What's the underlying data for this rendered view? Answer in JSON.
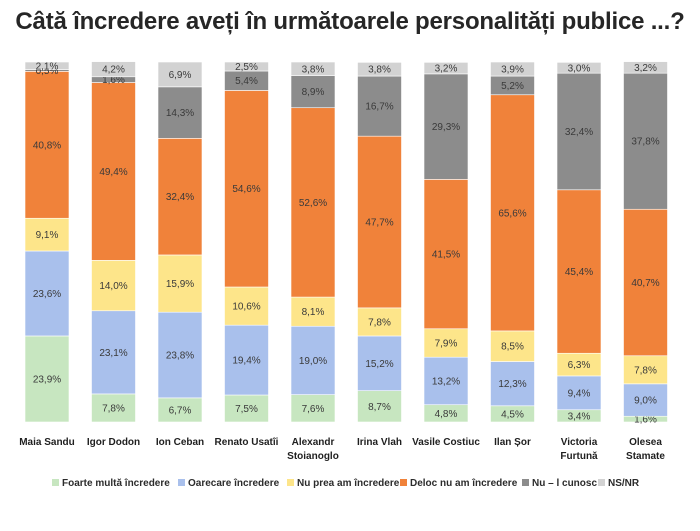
{
  "chart_data": {
    "type": "bar",
    "stacked": true,
    "title": "Câtă încredere aveți în următoarele personalități publice ...?",
    "categories": [
      [
        "Maia Sandu"
      ],
      [
        "Igor Dodon"
      ],
      [
        "Ion Ceban"
      ],
      [
        "Renato Usatîi"
      ],
      [
        "Alexandr",
        "Stoianoglo"
      ],
      [
        "Irina Vlah"
      ],
      [
        "Vasile Costiuc"
      ],
      [
        "Ilan Șor"
      ],
      [
        "Victoria",
        "Furtună"
      ],
      [
        "Olesea",
        "Stamate"
      ]
    ],
    "series": [
      {
        "name": "Foarte multă încredere",
        "color": "#c7e6c0",
        "values": [
          23.9,
          7.8,
          6.7,
          7.5,
          7.6,
          8.7,
          4.8,
          4.5,
          3.4,
          1.6
        ],
        "labels": [
          "23,9%",
          "7,8%",
          "6,7%",
          "7,5%",
          "7,6%",
          "8,7%",
          "4,8%",
          "4,5%",
          "3,4%",
          "1,6%"
        ]
      },
      {
        "name": "Oarecare încredere",
        "color": "#a9c0ec",
        "values": [
          23.6,
          23.1,
          23.8,
          19.4,
          19.0,
          15.2,
          13.2,
          12.3,
          9.4,
          9.0
        ],
        "labels": [
          "23,6%",
          "23,1%",
          "23,8%",
          "19,4%",
          "19,0%",
          "15,2%",
          "13,2%",
          "12,3%",
          "9,4%",
          "9,0%"
        ]
      },
      {
        "name": "Nu prea am încredere",
        "color": "#fde58a",
        "values": [
          9.1,
          14.0,
          15.9,
          10.6,
          8.1,
          7.8,
          7.9,
          8.5,
          6.3,
          7.8
        ],
        "labels": [
          "9,1%",
          "14,0%",
          "15,9%",
          "10,6%",
          "8,1%",
          "7,8%",
          "7,9%",
          "8,5%",
          "6,3%",
          "7,8%"
        ]
      },
      {
        "name": "Deloc nu am încredere",
        "color": "#f0823a",
        "values": [
          40.8,
          49.4,
          32.4,
          54.6,
          52.6,
          47.7,
          41.5,
          65.6,
          45.4,
          40.7
        ],
        "labels": [
          "40,8%",
          "49,4%",
          "32,4%",
          "54,6%",
          "52,6%",
          "47,7%",
          "41,5%",
          "65,6%",
          "45,4%",
          "40,7%"
        ]
      },
      {
        "name": "Nu – l cunosc",
        "color": "#8c8c8c",
        "values": [
          0.5,
          1.6,
          14.3,
          5.4,
          8.9,
          16.7,
          29.3,
          5.2,
          32.4,
          37.8
        ],
        "labels": [
          "0,5%",
          "1,6%",
          "14,3%",
          "5,4%",
          "8,9%",
          "16,7%",
          "29,3%",
          "5,2%",
          "32,4%",
          "37,8%"
        ]
      },
      {
        "name": "NS/NR",
        "color": "#d2d2d2",
        "values": [
          2.1,
          4.2,
          6.9,
          2.5,
          3.8,
          3.8,
          3.2,
          3.9,
          3.0,
          3.2
        ],
        "labels": [
          "2,1%",
          "4,2%",
          "6,9%",
          "2,5%",
          "3,8%",
          "3,8%",
          "3,2%",
          "3,9%",
          "3,0%",
          "3,2%"
        ]
      }
    ],
    "ylim": [
      0,
      100
    ],
    "xlabel": "",
    "ylabel": "",
    "grid": false,
    "legend": "bottom"
  }
}
